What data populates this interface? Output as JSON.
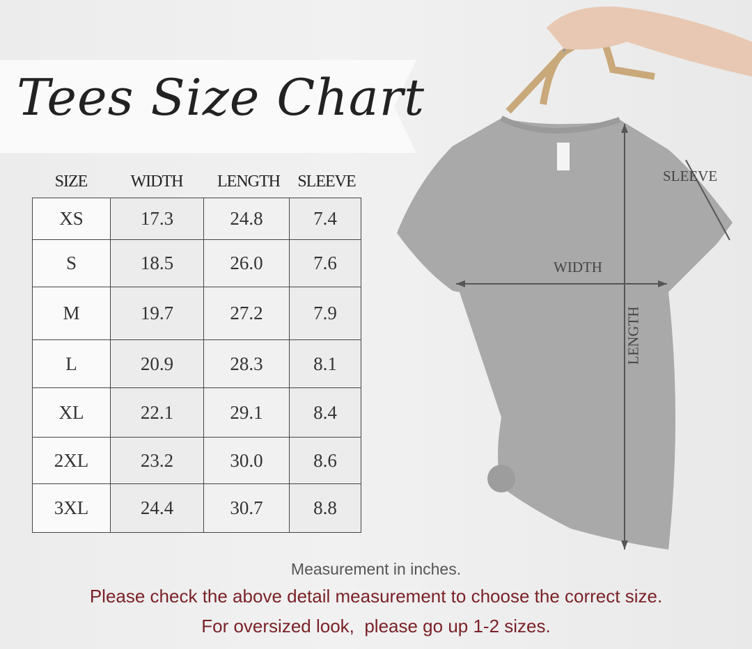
{
  "title": "Tees Size Chart",
  "table": {
    "headers": [
      "SIZE",
      "WIDTH",
      "LENGTH",
      "SLEEVE"
    ],
    "rows": [
      [
        "XS",
        "17.3",
        "24.8",
        "7.4"
      ],
      [
        "S",
        "18.5",
        "26.0",
        "7.6"
      ],
      [
        "M",
        "19.7",
        "27.2",
        "7.9"
      ],
      [
        "L",
        "20.9",
        "28.3",
        "8.1"
      ],
      [
        "XL",
        "22.1",
        "29.1",
        "8.4"
      ],
      [
        "2XL",
        "23.2",
        "30.0",
        "8.6"
      ],
      [
        "3XL",
        "24.4",
        "30.7",
        "8.8"
      ]
    ]
  },
  "diagram": {
    "width_label": "WIDTH",
    "length_label": "LENGTH",
    "sleeve_label": "SLEEVE",
    "shirt_color": "#a9a9a9"
  },
  "footer": {
    "unit_note": "Measurement in inches.",
    "check_note": "Please check the above detail measurement to choose the correct size.",
    "oversized_note": "For oversized look,  please go up 1-2 sizes.",
    "accent_color": "#7a2228"
  }
}
